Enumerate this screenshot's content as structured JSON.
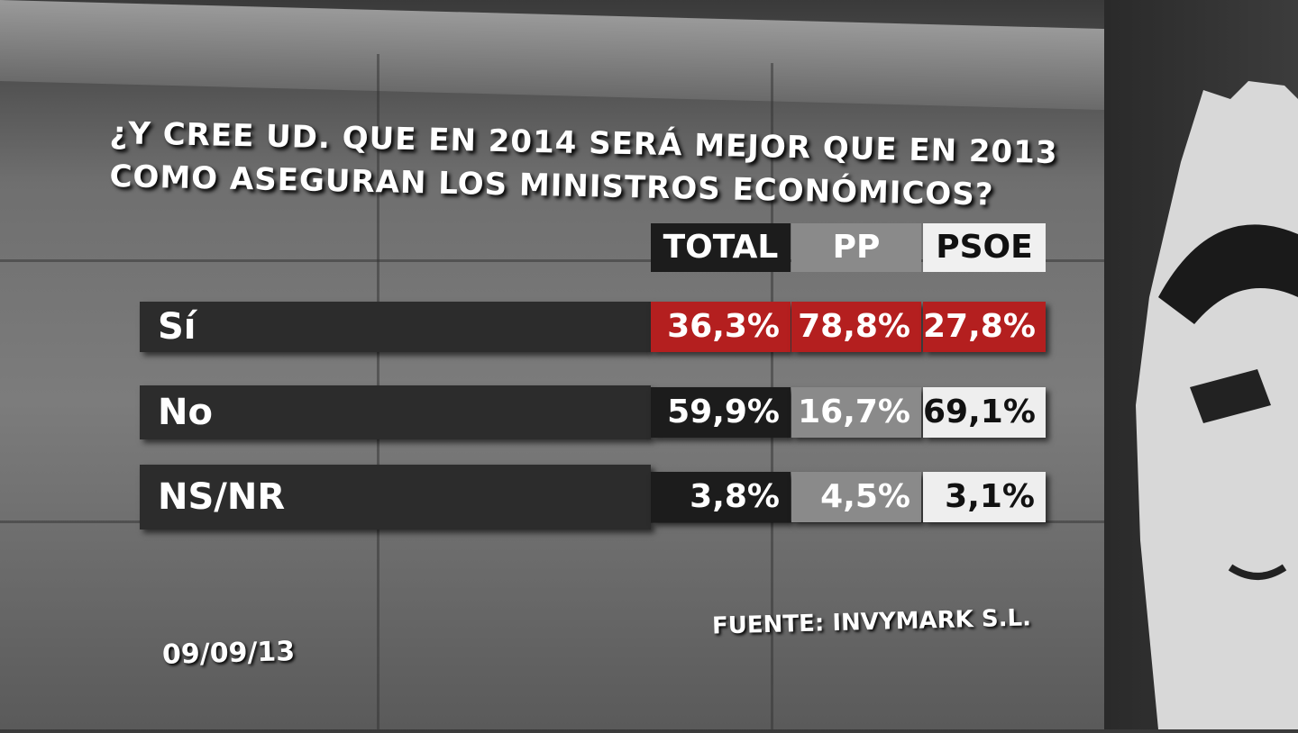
{
  "title": [
    "¿Y CREE UD. QUE EN 2014 SERÁ MEJOR QUE EN 2013",
    "COMO ASEGURAN LOS MINISTROS ECONÓMICOS?"
  ],
  "table": {
    "header": [
      "TOTAL",
      "PP",
      "PSOE"
    ],
    "rows": [
      [
        "Sí",
        "36,3%",
        "78,8%",
        "27,8%"
      ],
      [
        "No",
        "59,9%",
        "16,7%",
        "69,1%"
      ],
      [
        "NS/NR",
        "3,8%",
        "4,5%",
        "3,1%"
      ]
    ]
  },
  "source": "FUENTE: INVYMARK S.L.",
  "date": "09/09/13"
}
